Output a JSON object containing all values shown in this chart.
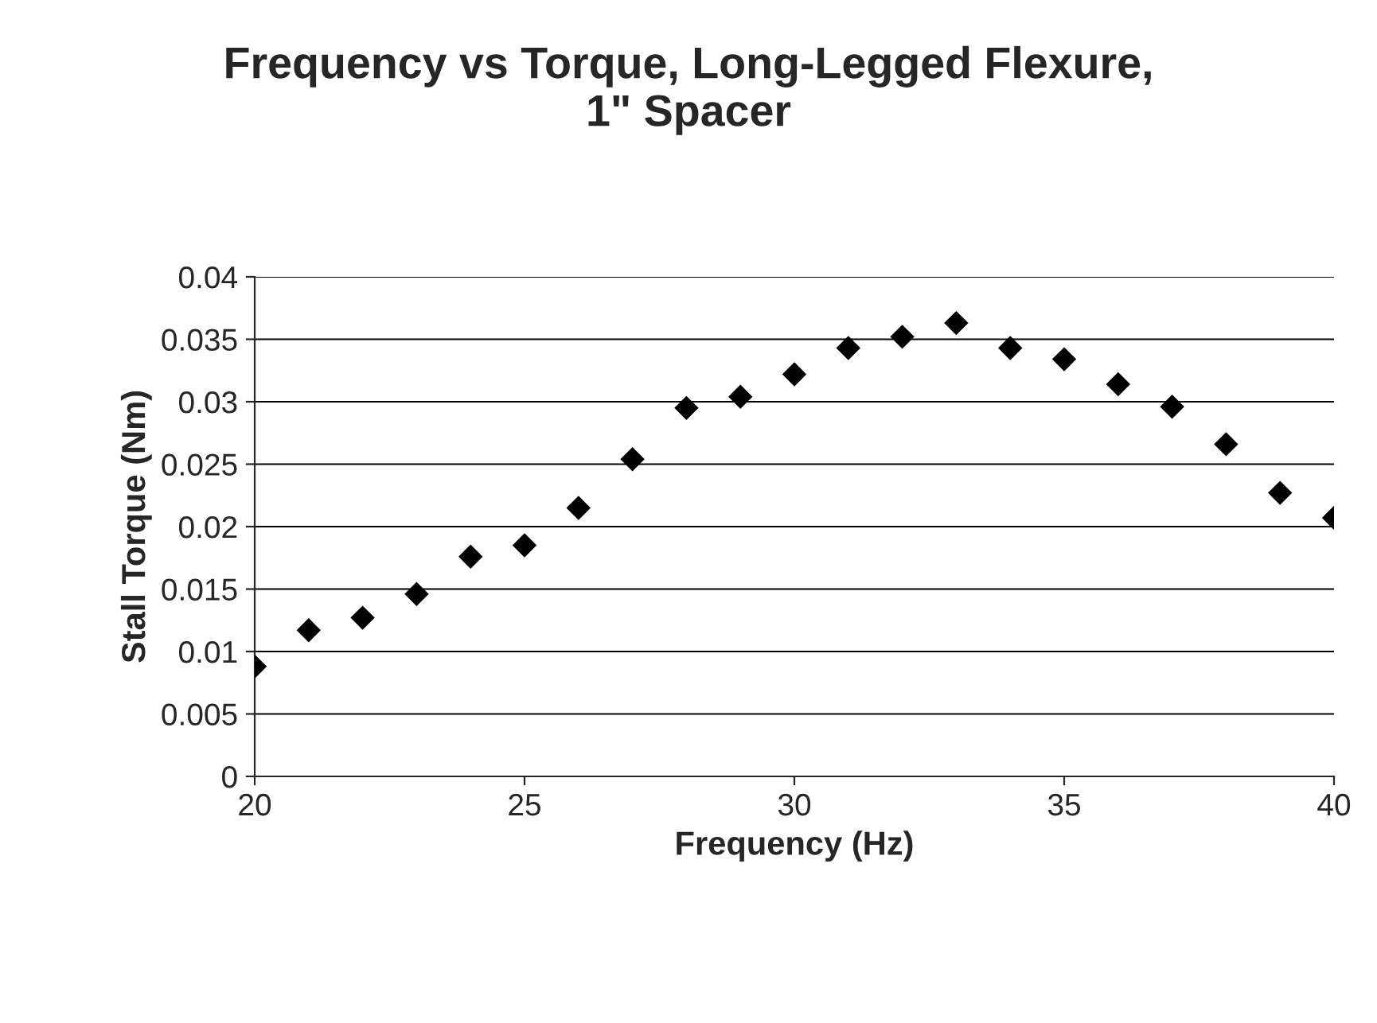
{
  "chart_data": {
    "type": "scatter",
    "title": "Frequency vs Torque, Long-Legged Flexure,\n1\" Spacer",
    "xlabel": "Frequency (Hz)",
    "ylabel": "Stall Torque (Nm)",
    "x": [
      20,
      21,
      22,
      23,
      24,
      25,
      26,
      27,
      28,
      29,
      30,
      31,
      32,
      33,
      34,
      35,
      36,
      37,
      38,
      39,
      40
    ],
    "series": [
      {
        "color": "#000000",
        "values": [
          0.0088,
          0.0117,
          0.0127,
          0.0146,
          0.0176,
          0.0185,
          0.0215,
          0.0254,
          0.0295,
          0.0304,
          0.0322,
          0.0343,
          0.0352,
          0.0363,
          0.0343,
          0.0334,
          0.0314,
          0.0296,
          0.0266,
          0.0227,
          0.0207
        ]
      }
    ],
    "xlim": [
      20,
      40
    ],
    "xticks": [
      20,
      25,
      30,
      35,
      40
    ],
    "ylim": [
      0,
      0.04
    ],
    "yticks": [
      0,
      0.005,
      0.01,
      0.015,
      0.02,
      0.025,
      0.03,
      0.035,
      0.04
    ],
    "grid": "y",
    "marker": "diamond",
    "legend": false
  }
}
